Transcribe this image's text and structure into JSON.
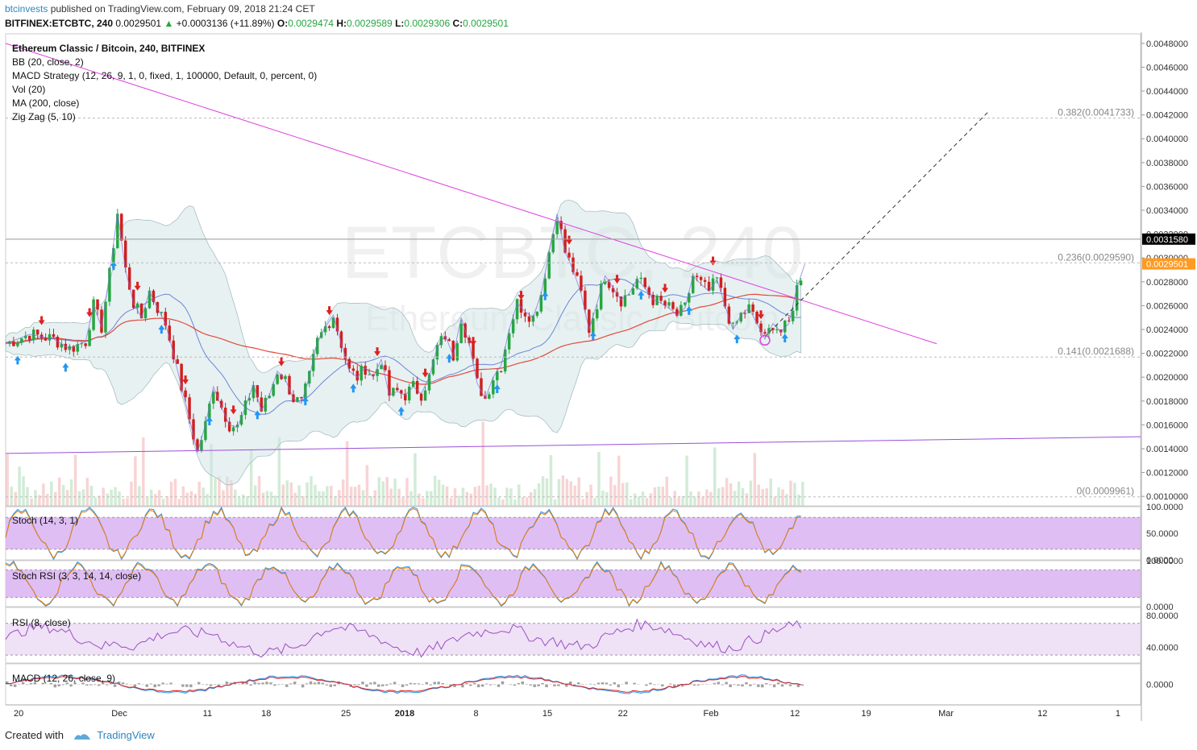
{
  "header": {
    "publisher": "btcinvests",
    "published_text": " published on TradingView.com, February 09, 2018 21:24 CET",
    "symbol": "BITFINEX:ETCBTC, 240",
    "last": "0.0029501",
    "change": "+0.0003136 (+11.89%)",
    "o_label": "O:",
    "o": "0.0029474",
    "h_label": "H:",
    "h": "0.0029589",
    "l_label": "L:",
    "l": "0.0029306",
    "c_label": "C:",
    "c": "0.0029501"
  },
  "legend": {
    "title": "Ethereum Classic / Bitcoin, 240, BITFINEX",
    "bb": "BB (20, close, 2)",
    "macd_strategy": "MACD Strategy (12, 26, 9, 1, 0, fixed, 1, 100000, Default, 0, percent, 0)",
    "vol": "Vol (20)",
    "ma": "MA (200, close)",
    "zigzag": "Zig Zag (5, 10)",
    "stoch": "Stoch (14, 3, 1)",
    "stoch_rsi": "Stoch RSI (3, 3, 14, 14, close)",
    "rsi": "RSI (8, close)",
    "macd": "MACD (12, 26, close, 9)"
  },
  "watermark": {
    "symbol": "ETCBTC, 240",
    "name": "Ethereum Classic / Bitcoin"
  },
  "colors": {
    "up": "#26a641",
    "down": "#d01f1f",
    "ma200": "#e24a3b",
    "bb": "#8d9fd9",
    "trend": "#e040e0",
    "support": "#9b4fd8",
    "osc_fill": "#d9b3f2",
    "rsi_line": "#9c4fc2"
  },
  "chart_data": [
    {
      "type": "candlestick",
      "title": "Ethereum Classic / Bitcoin, 240, BITFINEX",
      "y_axis_ticks": [
        "0.0048000",
        "0.0046000",
        "0.0044000",
        "0.0042000",
        "0.0040000",
        "0.0038000",
        "0.0036000",
        "0.0034000",
        "0.0032000",
        "0.0030000",
        "0.0028000",
        "0.0026000",
        "0.0024000",
        "0.0022000",
        "0.0020000",
        "0.0018000",
        "0.0016000",
        "0.0014000",
        "0.0012000",
        "0.0010000"
      ],
      "ylim": [
        0.00092,
        0.00488
      ],
      "x_axis_ticks": [
        "20",
        "Dec",
        "11",
        "18",
        "25",
        "2018",
        "8",
        "15",
        "22",
        "Feb",
        "12",
        "19",
        "Mar",
        "12",
        "1"
      ],
      "price_labels": [
        {
          "text": "0.0031580",
          "value": 0.003158,
          "bg": "#000000"
        },
        {
          "text": "0.0029501",
          "value": 0.0029501,
          "bg": "#ff9a22"
        }
      ],
      "fib_levels": [
        {
          "text": "0.382(0.0041733)",
          "value": 0.0041733
        },
        {
          "text": "0.236(0.0029590)",
          "value": 0.002959
        },
        {
          "text": "0.141(0.0021688)",
          "value": 0.0021688
        },
        {
          "text": "0(0.0009961)",
          "value": 0.0009961
        }
      ],
      "price_path": [
        [
          0,
          0.00228
        ],
        [
          6,
          0.00236
        ],
        [
          12,
          0.00232
        ],
        [
          16,
          0.00224
        ],
        [
          20,
          0.0023
        ],
        [
          22,
          0.0026
        ],
        [
          24,
          0.00242
        ],
        [
          26,
          0.00286
        ],
        [
          28,
          0.00338
        ],
        [
          30,
          0.0029
        ],
        [
          32,
          0.00262
        ],
        [
          34,
          0.0025
        ],
        [
          36,
          0.00272
        ],
        [
          38,
          0.00258
        ],
        [
          40,
          0.00245
        ],
        [
          42,
          0.0022
        ],
        [
          44,
          0.00192
        ],
        [
          46,
          0.00165
        ],
        [
          48,
          0.00137
        ],
        [
          50,
          0.0016
        ],
        [
          52,
          0.00192
        ],
        [
          54,
          0.00175
        ],
        [
          56,
          0.0016
        ],
        [
          58,
          0.00158
        ],
        [
          60,
          0.00175
        ],
        [
          62,
          0.00194
        ],
        [
          64,
          0.00172
        ],
        [
          66,
          0.00185
        ],
        [
          68,
          0.00205
        ],
        [
          70,
          0.00198
        ],
        [
          72,
          0.00182
        ],
        [
          74,
          0.00178
        ],
        [
          76,
          0.002
        ],
        [
          78,
          0.0023
        ],
        [
          80,
          0.00242
        ],
        [
          82,
          0.00252
        ],
        [
          84,
          0.00228
        ],
        [
          86,
          0.00205
        ],
        [
          88,
          0.002
        ],
        [
          90,
          0.00208
        ],
        [
          92,
          0.002
        ],
        [
          94,
          0.00215
        ],
        [
          96,
          0.00185
        ],
        [
          98,
          0.00188
        ],
        [
          100,
          0.00185
        ],
        [
          102,
          0.00192
        ],
        [
          104,
          0.00186
        ],
        [
          106,
          0.002
        ],
        [
          108,
          0.00225
        ],
        [
          110,
          0.00235
        ],
        [
          112,
          0.00218
        ],
        [
          114,
          0.0025
        ],
        [
          116,
          0.00228
        ],
        [
          118,
          0.00195
        ],
        [
          120,
          0.00182
        ],
        [
          122,
          0.002
        ],
        [
          124,
          0.0021
        ],
        [
          126,
          0.0024
        ],
        [
          128,
          0.00262
        ],
        [
          130,
          0.00255
        ],
        [
          132,
          0.0025
        ],
        [
          134,
          0.0027
        ],
        [
          136,
          0.00305
        ],
        [
          138,
          0.00337
        ],
        [
          140,
          0.00305
        ],
        [
          142,
          0.0029
        ],
        [
          144,
          0.0027
        ],
        [
          146,
          0.0024
        ],
        [
          148,
          0.00262
        ],
        [
          150,
          0.00285
        ],
        [
          152,
          0.00275
        ],
        [
          154,
          0.00265
        ],
        [
          156,
          0.0027
        ],
        [
          158,
          0.00282
        ],
        [
          160,
          0.00275
        ],
        [
          162,
          0.00265
        ],
        [
          164,
          0.00262
        ],
        [
          166,
          0.00258
        ],
        [
          168,
          0.00252
        ],
        [
          170,
          0.00258
        ],
        [
          172,
          0.00285
        ],
        [
          174,
          0.00278
        ],
        [
          176,
          0.00272
        ],
        [
          178,
          0.00282
        ],
        [
          180,
          0.0026
        ],
        [
          182,
          0.0024
        ],
        [
          184,
          0.00252
        ],
        [
          186,
          0.00258
        ],
        [
          188,
          0.00245
        ],
        [
          190,
          0.00232
        ],
        [
          192,
          0.00245
        ],
        [
          194,
          0.00238
        ],
        [
          196,
          0.00245
        ],
        [
          198,
          0.00275
        ],
        [
          200,
          0.00295
        ]
      ],
      "bars_total": 200,
      "x_extent_bars": 284,
      "annotations": {
        "downtrend_line": [
          [
            0,
            0.0048
          ],
          [
            233,
            0.00228
          ]
        ],
        "support_line": [
          [
            0,
            0.00136
          ],
          [
            284,
            0.0015
          ]
        ],
        "projection": [
          [
            190,
            0.00234
          ],
          [
            246,
            0.00423
          ]
        ],
        "horizontal_line": 0.003158
      }
    },
    {
      "type": "line",
      "title": "Stoch (14, 3, 1)",
      "y_axis_ticks": [
        "100.0000",
        "50.0000",
        "0.0000"
      ],
      "ylim": [
        0,
        100
      ],
      "band": [
        20,
        80
      ]
    },
    {
      "type": "line",
      "title": "Stoch RSI (3, 3, 14, 14, close)",
      "y_axis_ticks": [
        "100.0000",
        "0.0000"
      ],
      "ylim": [
        0,
        100
      ],
      "band": [
        20,
        80
      ]
    },
    {
      "type": "line",
      "title": "RSI (8, close)",
      "y_axis_ticks": [
        "80.0000",
        "40.0000"
      ],
      "ylim": [
        20,
        90
      ],
      "band": [
        30,
        70
      ]
    },
    {
      "type": "line",
      "title": "MACD (12, 26, close, 9)",
      "y_axis_ticks": [
        "0.0000"
      ],
      "ylim": [
        -1,
        1
      ]
    }
  ],
  "footer": {
    "created": "Created with",
    "brand": "TradingView"
  }
}
